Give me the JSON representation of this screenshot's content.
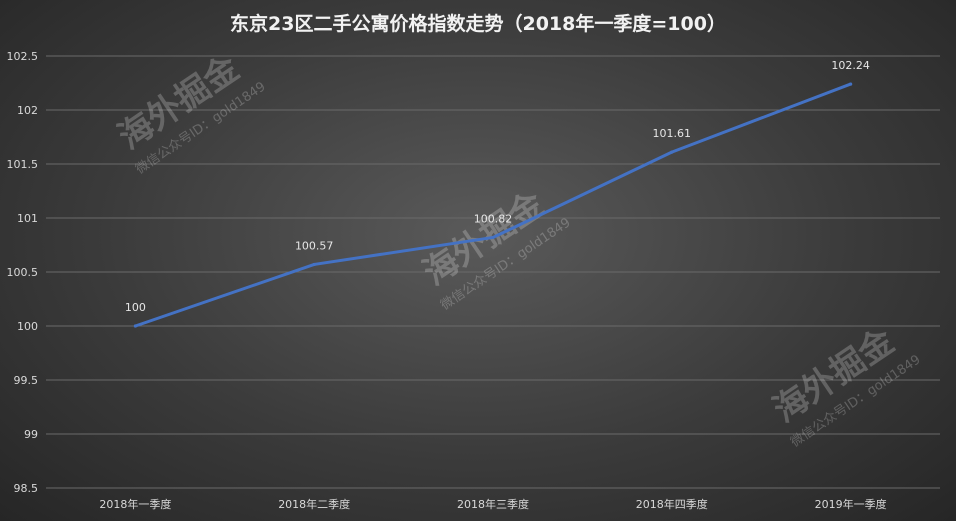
{
  "chart_data": {
    "type": "line",
    "title": "东京23区二手公寓价格指数走势（2018年一季度=100）",
    "categories": [
      "2018年一季度",
      "2018年二季度",
      "2018年三季度",
      "2018年四季度",
      "2019年一季度"
    ],
    "series": [
      {
        "values": [
          100,
          100.57,
          100.82,
          101.61,
          102.24
        ],
        "color": "#4472c4"
      }
    ],
    "data_labels": [
      "100",
      "100.57",
      "100.82",
      "101.61",
      "102.24"
    ],
    "y_ticks": [
      "98.5",
      "99",
      "99.5",
      "100",
      "100.5",
      "101",
      "101.5",
      "102",
      "102.5"
    ],
    "ylim": [
      98.5,
      102.5
    ],
    "grid": true,
    "legend": "none"
  },
  "watermarks": [
    {
      "brand": "海外掘金",
      "sub": "微信公众号ID：gold1849"
    },
    {
      "brand": "海外掘金",
      "sub": "微信公众号ID：gold1849"
    },
    {
      "brand": "海外掘金",
      "sub": "微信公众号ID：gold1849"
    }
  ]
}
